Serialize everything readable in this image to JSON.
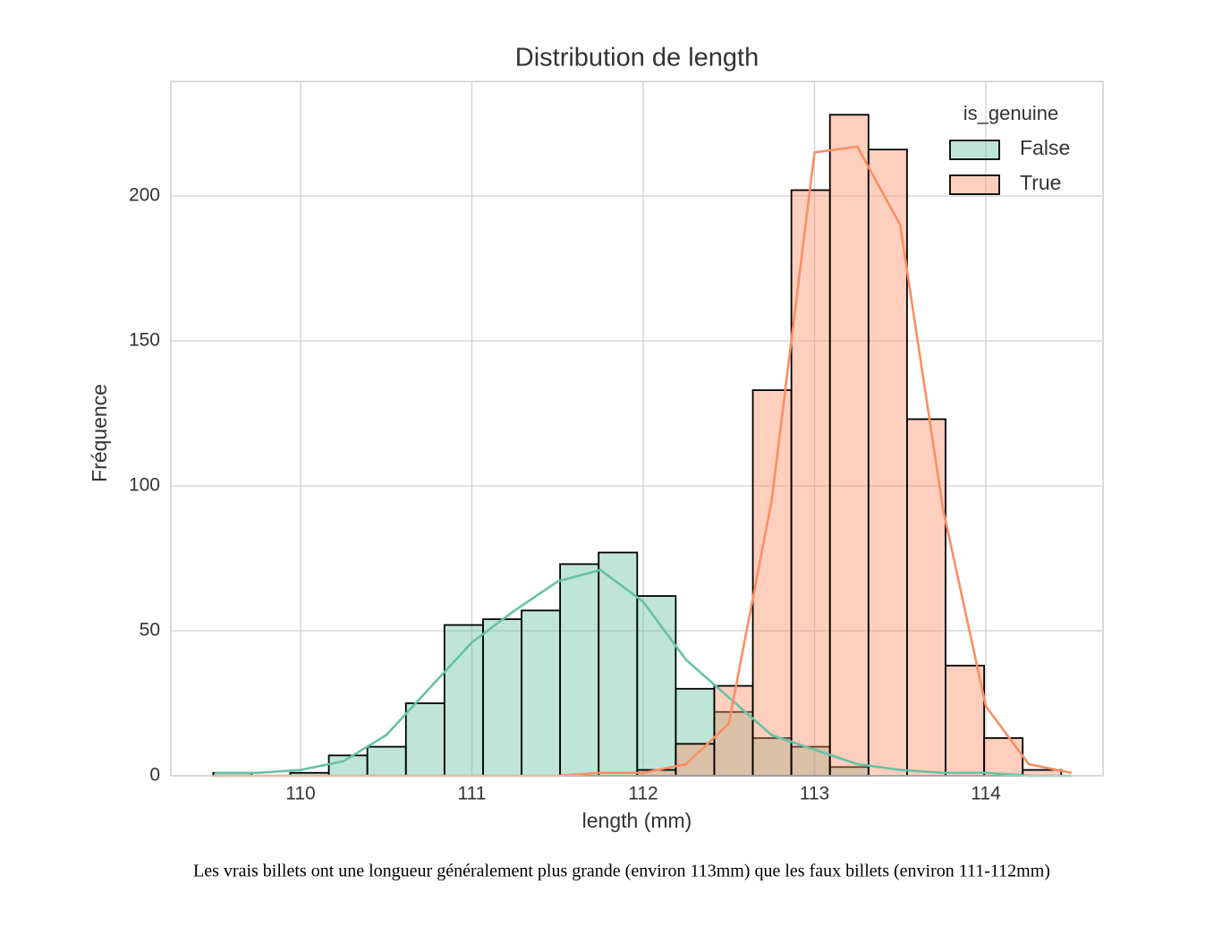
{
  "chart_data": {
    "type": "histogram",
    "title": "Distribution de length",
    "x_label": "length (mm)",
    "y_label": "Fréquence",
    "bins": [
      109.49,
      109.715,
      109.94,
      110.165,
      110.39,
      110.615,
      110.84,
      111.065,
      111.29,
      111.515,
      111.74,
      111.965,
      112.19,
      112.415,
      112.64,
      112.865,
      113.09,
      113.315,
      113.54,
      113.765,
      113.99,
      114.215,
      114.44
    ],
    "legend_title": "is_genuine",
    "legend": "upper right",
    "series": [
      {
        "name": "False",
        "color": "#66c2a5",
        "values": [
          1,
          0,
          1,
          7,
          10,
          25,
          52,
          54,
          57,
          73,
          77,
          62,
          30,
          22,
          13,
          10,
          3,
          0,
          0,
          0,
          0,
          0
        ],
        "kde_values": [
          1,
          1,
          2,
          5,
          14,
          30,
          46,
          57,
          67,
          71,
          60,
          40,
          27,
          14,
          9,
          4,
          2,
          1,
          1,
          0,
          0
        ]
      },
      {
        "name": "True",
        "color": "#fc8d62",
        "values": [
          0,
          0,
          0,
          0,
          0,
          0,
          0,
          0,
          0,
          0,
          0,
          2,
          11,
          31,
          133,
          202,
          228,
          216,
          123,
          38,
          13,
          2
        ],
        "kde_values": [
          0,
          0,
          0,
          0,
          0,
          0,
          0,
          0,
          0,
          1,
          1,
          4,
          18,
          95,
          215,
          217,
          190,
          92,
          24,
          4,
          1
        ]
      }
    ],
    "kde_x": [
      109.5,
      109.75,
      110,
      110.25,
      110.5,
      110.75,
      111,
      111.25,
      111.5,
      111.75,
      112,
      112.25,
      112.5,
      112.75,
      113,
      113.25,
      113.5,
      113.75,
      114,
      114.25,
      114.5
    ],
    "xlim": [
      109.243,
      114.684
    ],
    "ylim": [
      0,
      239.5
    ],
    "xticks": [
      110,
      111,
      112,
      113,
      114
    ],
    "yticks": [
      0,
      50,
      100,
      150,
      200
    ],
    "grid": true
  },
  "caption": "Les vrais billets ont une longueur généralement plus grande (environ 113mm) que les faux billets (environ 111-112mm)"
}
